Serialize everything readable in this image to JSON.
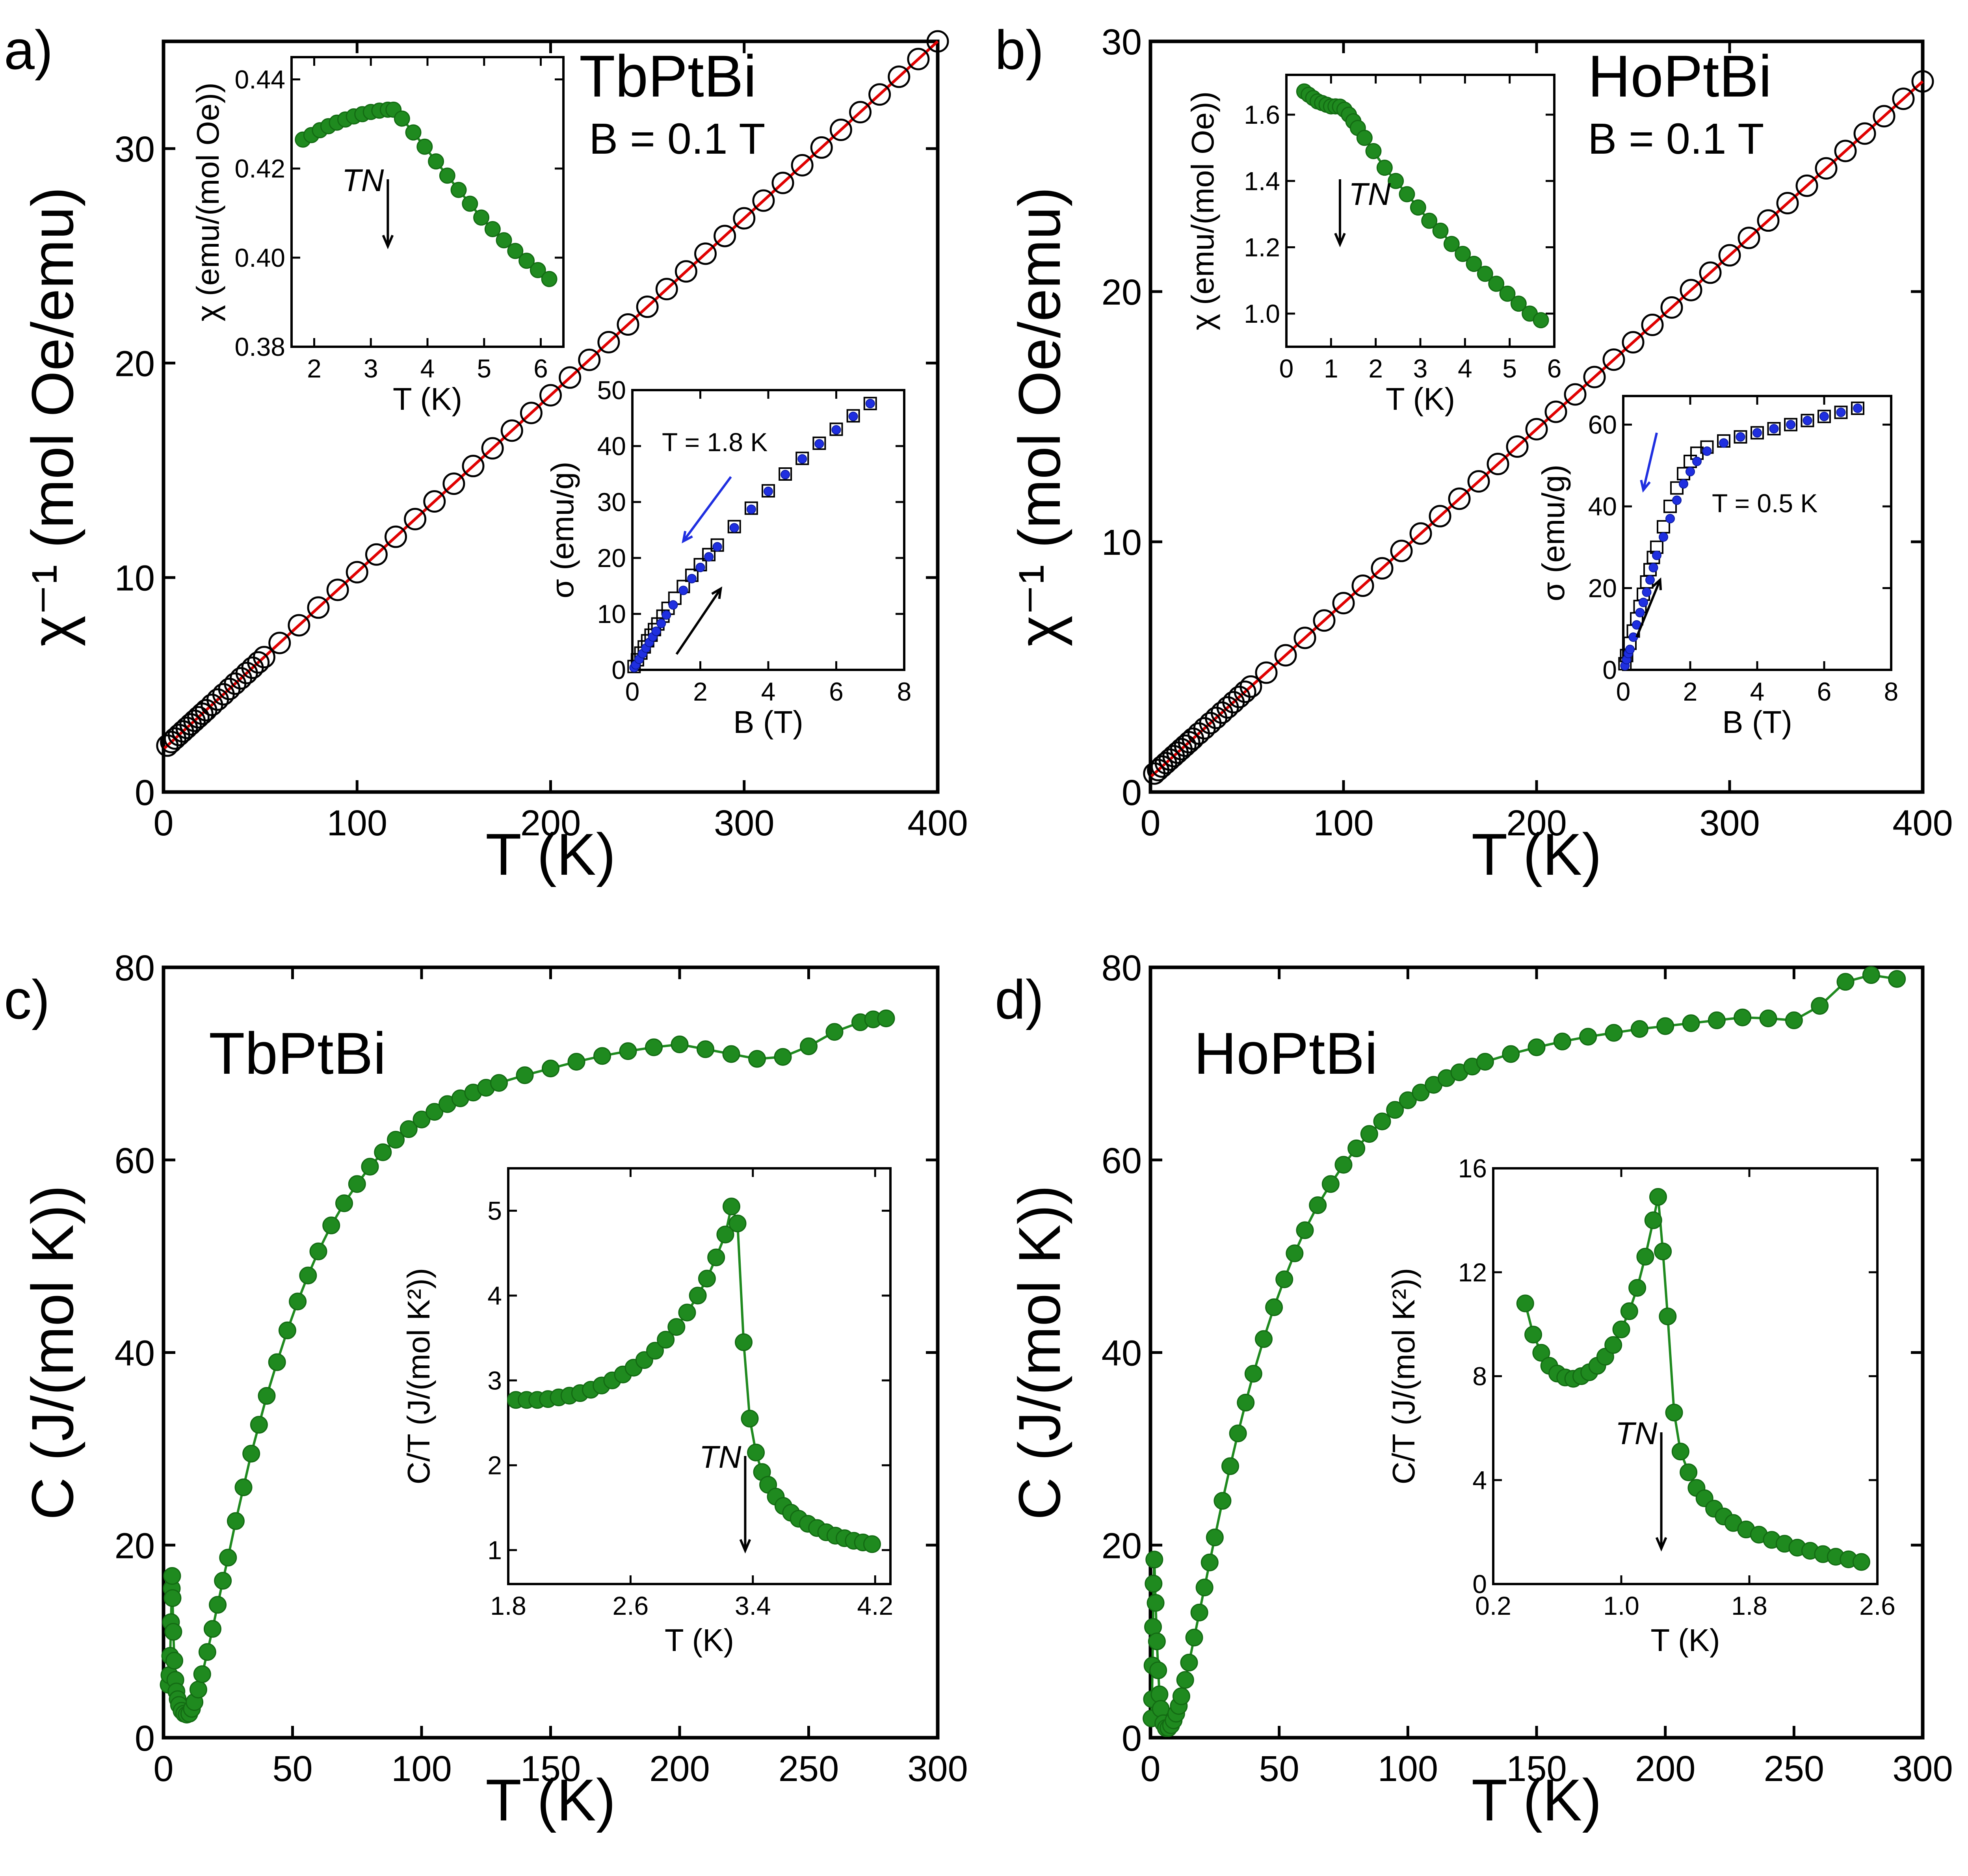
{
  "figure": {
    "panels": [
      "a)",
      "b)",
      "c)",
      "d)"
    ]
  },
  "chart_data": [
    {
      "id": "a_main",
      "type": "scatter",
      "panel": "a)",
      "compound": "TbPtBi",
      "field": "B = 0.1 T",
      "xlabel": "T (K)",
      "ylabel": "χ⁻¹ (mol Oe/emu)",
      "xlim": [
        0,
        400
      ],
      "ylim": [
        0,
        35
      ],
      "xticks": [
        0,
        100,
        200,
        300,
        400
      ],
      "yticks": [
        0,
        10,
        20,
        30
      ],
      "fit": {
        "slope": 0.0825,
        "intercept": 2.0
      },
      "x": [
        2,
        4,
        6,
        8,
        10,
        12,
        14,
        16,
        18,
        20,
        22,
        25,
        28,
        31,
        34,
        37,
        40,
        43,
        46,
        49,
        52,
        60,
        70,
        80,
        90,
        100,
        110,
        120,
        130,
        140,
        150,
        160,
        170,
        180,
        190,
        200,
        210,
        220,
        230,
        240,
        250,
        260,
        270,
        280,
        290,
        300,
        310,
        320,
        330,
        340,
        350,
        360,
        370,
        380,
        390,
        400
      ],
      "legend": "none"
    },
    {
      "id": "a_inset_chi",
      "type": "line",
      "panel": "a)",
      "xlabel": "T (K)",
      "ylabel": "χ (emu/(mol Oe))",
      "xlim": [
        1.6,
        6.4
      ],
      "ylim": [
        0.38,
        0.445
      ],
      "xticks": [
        2,
        3,
        4,
        5,
        6
      ],
      "yticks": [
        0.38,
        0.4,
        0.42,
        0.44
      ],
      "tn_label": "TN",
      "tn_x": 3.3,
      "x": [
        1.8,
        1.95,
        2.1,
        2.25,
        2.4,
        2.55,
        2.7,
        2.85,
        3.0,
        3.15,
        3.3,
        3.4,
        3.55,
        3.75,
        3.95,
        4.15,
        4.35,
        4.55,
        4.75,
        4.95,
        5.15,
        5.35,
        5.55,
        5.75,
        5.95,
        6.15
      ],
      "values": [
        0.4265,
        0.4275,
        0.4286,
        0.4295,
        0.4303,
        0.431,
        0.4317,
        0.4322,
        0.4327,
        0.433,
        0.4332,
        0.4332,
        0.4312,
        0.4281,
        0.4249,
        0.4216,
        0.4184,
        0.4152,
        0.4121,
        0.409,
        0.4064,
        0.4039,
        0.4015,
        0.3993,
        0.3972,
        0.3952
      ]
    },
    {
      "id": "a_inset_sigma",
      "type": "scatter",
      "panel": "a)",
      "xlabel": "B (T)",
      "ylabel": "σ (emu/g)",
      "xlim": [
        0,
        8
      ],
      "ylim": [
        0,
        50
      ],
      "xticks": [
        0,
        2,
        4,
        6,
        8
      ],
      "yticks": [
        0,
        10,
        20,
        30,
        40,
        50
      ],
      "annotation": "T = 1.8 K",
      "up_x": [
        0.05,
        0.15,
        0.25,
        0.35,
        0.45,
        0.55,
        0.65,
        0.75,
        0.9,
        1.05,
        1.25,
        1.5,
        1.75,
        2.0,
        2.25,
        2.5,
        3.0,
        3.5,
        4.0,
        4.5,
        5.0,
        5.5,
        6.0,
        6.5,
        7.0
      ],
      "up_y": [
        0.6,
        1.8,
        3.0,
        4.1,
        5.2,
        6.2,
        7.2,
        8.2,
        9.6,
        11.0,
        12.8,
        14.9,
        16.9,
        18.8,
        20.6,
        22.3,
        25.6,
        28.9,
        32.0,
        35.0,
        37.8,
        40.5,
        43.0,
        45.4,
        47.6
      ],
      "down_x": [
        0.05,
        0.1,
        0.2,
        0.3,
        0.4,
        0.5,
        0.6,
        0.7,
        0.85,
        1.0,
        1.2,
        1.5,
        1.75,
        2.0,
        2.25,
        2.5,
        3.0,
        3.5,
        4.0,
        4.5,
        5.0,
        5.5,
        6.0,
        6.5,
        7.0
      ],
      "down_y": [
        0.4,
        0.9,
        1.9,
        2.9,
        3.9,
        4.9,
        5.9,
        6.9,
        8.3,
        9.8,
        11.6,
        14.2,
        16.3,
        18.3,
        20.2,
        22.0,
        25.4,
        28.7,
        31.9,
        34.9,
        37.7,
        40.4,
        42.9,
        45.3,
        47.6
      ]
    },
    {
      "id": "b_main",
      "type": "scatter",
      "panel": "b)",
      "compound": "HoPtBi",
      "field": "B = 0.1 T",
      "xlabel": "T (K)",
      "ylabel": "χ⁻¹ (mol Oe/emu)",
      "xlim": [
        0,
        400
      ],
      "ylim": [
        0,
        30
      ],
      "xticks": [
        0,
        100,
        200,
        300,
        400
      ],
      "yticks": [
        0,
        10,
        20,
        30
      ],
      "fit": {
        "slope": 0.0695,
        "intercept": 0.6
      },
      "x": [
        2,
        4,
        6,
        8,
        10,
        12,
        14,
        16,
        18,
        20,
        22,
        25,
        28,
        31,
        34,
        37,
        40,
        43,
        46,
        49,
        52,
        60,
        70,
        80,
        90,
        100,
        110,
        120,
        130,
        140,
        150,
        160,
        170,
        180,
        190,
        200,
        210,
        220,
        230,
        240,
        250,
        260,
        270,
        280,
        290,
        300,
        310,
        320,
        330,
        340,
        350,
        360,
        370,
        380,
        390,
        400
      ],
      "legend": "none"
    },
    {
      "id": "b_inset_chi",
      "type": "line",
      "panel": "b)",
      "xlabel": "T (K)",
      "ylabel": "χ (emu/(mol Oe))",
      "xlim": [
        0,
        6
      ],
      "ylim": [
        0.9,
        1.72
      ],
      "xticks": [
        0,
        1,
        2,
        3,
        4,
        5,
        6
      ],
      "yticks": [
        1.0,
        1.2,
        1.4,
        1.6
      ],
      "tn_label": "TN",
      "tn_x": 1.2,
      "x": [
        0.4,
        0.5,
        0.6,
        0.7,
        0.8,
        0.9,
        1.0,
        1.1,
        1.2,
        1.3,
        1.4,
        1.5,
        1.6,
        1.75,
        1.95,
        2.2,
        2.45,
        2.7,
        2.95,
        3.2,
        3.45,
        3.7,
        3.95,
        4.2,
        4.45,
        4.7,
        4.95,
        5.2,
        5.45,
        5.7
      ],
      "values": [
        1.67,
        1.66,
        1.65,
        1.64,
        1.635,
        1.63,
        1.625,
        1.625,
        1.624,
        1.615,
        1.6,
        1.58,
        1.56,
        1.53,
        1.49,
        1.44,
        1.4,
        1.36,
        1.32,
        1.28,
        1.25,
        1.21,
        1.18,
        1.15,
        1.12,
        1.09,
        1.06,
        1.03,
        1.0,
        0.98
      ]
    },
    {
      "id": "b_inset_sigma",
      "type": "scatter",
      "panel": "b)",
      "xlabel": "B (T)",
      "ylabel": "σ (emu/g)",
      "xlim": [
        0,
        8
      ],
      "ylim": [
        0,
        67
      ],
      "xticks": [
        0,
        2,
        4,
        6,
        8
      ],
      "yticks": [
        0,
        20,
        40,
        60
      ],
      "annotation": "T = 0.5 K",
      "up_x": [
        0.05,
        0.1,
        0.2,
        0.3,
        0.4,
        0.5,
        0.6,
        0.7,
        0.8,
        0.9,
        1.0,
        1.2,
        1.4,
        1.6,
        1.8,
        2.0,
        2.2,
        2.5,
        3.0,
        3.5,
        4.0,
        4.5,
        5.0,
        5.5,
        6.0,
        6.5,
        7.0
      ],
      "up_y": [
        1.5,
        3.5,
        6.5,
        9.5,
        12.5,
        15.5,
        18.5,
        21.5,
        24.5,
        27.5,
        30.0,
        35.0,
        40.0,
        44.5,
        48.0,
        51.0,
        53.0,
        54.5,
        56.0,
        57.0,
        58.0,
        59.0,
        60.0,
        61.0,
        62.0,
        63.0,
        64.0
      ],
      "down_x": [
        0.05,
        0.1,
        0.15,
        0.2,
        0.3,
        0.4,
        0.5,
        0.6,
        0.7,
        0.8,
        0.9,
        1.0,
        1.2,
        1.4,
        1.6,
        1.8,
        2.0,
        2.2,
        2.5,
        3.0,
        3.5,
        4.0,
        4.5,
        5.0,
        5.5,
        6.0,
        6.5,
        7.0
      ],
      "down_y": [
        1.0,
        2.5,
        4.0,
        5.0,
        8.0,
        11.0,
        14.0,
        16.5,
        19.0,
        22.0,
        25.0,
        28.0,
        32.5,
        37.0,
        41.5,
        45.5,
        48.5,
        51.0,
        53.5,
        55.5,
        57.0,
        58.0,
        59.0,
        60.0,
        61.0,
        62.0,
        63.0,
        64.0
      ]
    },
    {
      "id": "c_main",
      "type": "line",
      "panel": "c)",
      "compound": "TbPtBi",
      "xlabel": "T (K)",
      "ylabel": "C (J/(mol K))",
      "xlim": [
        0,
        300
      ],
      "ylim": [
        0,
        80
      ],
      "xticks": [
        0,
        50,
        100,
        150,
        200,
        250,
        300
      ],
      "yticks": [
        0,
        20,
        40,
        60,
        80
      ],
      "x": [
        2,
        2.3,
        2.6,
        2.9,
        3.2,
        3.35,
        3.5,
        3.8,
        4.2,
        4.6,
        5,
        5.5,
        6,
        7,
        8,
        9,
        10,
        11,
        12,
        13.5,
        15,
        17,
        19,
        21,
        23,
        25,
        28,
        31,
        34,
        37,
        40,
        44,
        48,
        52,
        56,
        60,
        65,
        70,
        75,
        80,
        85,
        90,
        95,
        100,
        105,
        110,
        115,
        120,
        125,
        130,
        140,
        150,
        160,
        170,
        180,
        190,
        200,
        210,
        220,
        230,
        240,
        250,
        260,
        270,
        275,
        280
      ],
      "values": [
        5.5,
        6.5,
        8.5,
        12.0,
        15.5,
        16.8,
        14.5,
        11.0,
        8.0,
        6.0,
        4.8,
        4.0,
        3.4,
        2.8,
        2.5,
        2.4,
        2.5,
        3.0,
        3.7,
        5.0,
        6.6,
        8.9,
        11.3,
        13.8,
        16.3,
        18.7,
        22.5,
        26.0,
        29.5,
        32.5,
        35.5,
        39.0,
        42.3,
        45.3,
        48.0,
        50.5,
        53.2,
        55.5,
        57.5,
        59.3,
        60.8,
        62.1,
        63.2,
        64.2,
        65.0,
        65.8,
        66.4,
        67.0,
        67.5,
        68.0,
        68.8,
        69.5,
        70.2,
        70.8,
        71.3,
        71.7,
        72.0,
        71.5,
        71.0,
        70.5,
        70.7,
        71.8,
        73.3,
        74.3,
        74.6,
        74.7
      ],
      "legend": "none"
    },
    {
      "id": "c_inset",
      "type": "line",
      "panel": "c)",
      "xlabel": "T (K)",
      "ylabel": "C/T (J/(mol K²))",
      "xlim": [
        1.8,
        4.3
      ],
      "ylim": [
        0.6,
        5.5
      ],
      "xticks": [
        1.8,
        2.6,
        3.4,
        4.2
      ],
      "yticks": [
        1,
        2,
        3,
        4,
        5
      ],
      "tn_label": "TN",
      "tn_x": 3.35,
      "x": [
        1.85,
        1.92,
        1.99,
        2.06,
        2.13,
        2.2,
        2.27,
        2.34,
        2.41,
        2.48,
        2.55,
        2.62,
        2.69,
        2.76,
        2.83,
        2.9,
        2.97,
        3.04,
        3.1,
        3.16,
        3.22,
        3.26,
        3.3,
        3.34,
        3.38,
        3.42,
        3.46,
        3.5,
        3.55,
        3.6,
        3.65,
        3.7,
        3.76,
        3.82,
        3.88,
        3.94,
        4.0,
        4.06,
        4.12,
        4.18
      ],
      "values": [
        2.77,
        2.77,
        2.77,
        2.78,
        2.8,
        2.82,
        2.85,
        2.89,
        2.94,
        3.0,
        3.07,
        3.15,
        3.24,
        3.35,
        3.48,
        3.63,
        3.8,
        4.0,
        4.2,
        4.45,
        4.72,
        5.05,
        4.85,
        3.45,
        2.55,
        2.15,
        1.92,
        1.77,
        1.63,
        1.52,
        1.44,
        1.37,
        1.31,
        1.26,
        1.21,
        1.17,
        1.14,
        1.11,
        1.09,
        1.07
      ]
    },
    {
      "id": "d_main",
      "type": "line",
      "panel": "d)",
      "compound": "HoPtBi",
      "xlabel": "T (K)",
      "ylabel": "C (J/(mol K))",
      "xlim": [
        0,
        300
      ],
      "ylim": [
        0,
        80
      ],
      "xticks": [
        0,
        50,
        100,
        150,
        200,
        250,
        300
      ],
      "yticks": [
        0,
        20,
        40,
        60,
        80
      ],
      "x": [
        0.4,
        0.6,
        0.8,
        1.0,
        1.2,
        1.5,
        2,
        2.5,
        3,
        3.5,
        4,
        5,
        6,
        7,
        8,
        9,
        10,
        11,
        12,
        13.5,
        15,
        17,
        19,
        21,
        23,
        25,
        28,
        31,
        34,
        37,
        40,
        44,
        48,
        52,
        56,
        60,
        65,
        70,
        75,
        80,
        85,
        90,
        95,
        100,
        105,
        110,
        115,
        120,
        125,
        130,
        140,
        150,
        160,
        170,
        180,
        190,
        200,
        210,
        220,
        230,
        240,
        250,
        260,
        270,
        280,
        290
      ],
      "values": [
        2.0,
        4.0,
        7.5,
        11.5,
        16.0,
        18.5,
        14.0,
        10.0,
        7.0,
        4.5,
        3.0,
        1.5,
        1.0,
        1.0,
        1.3,
        1.8,
        2.5,
        3.3,
        4.3,
        6.0,
        7.8,
        10.4,
        13.0,
        15.6,
        18.2,
        20.8,
        24.6,
        28.2,
        31.6,
        34.8,
        37.8,
        41.4,
        44.7,
        47.6,
        50.3,
        52.7,
        55.3,
        57.5,
        59.5,
        61.2,
        62.7,
        64.0,
        65.2,
        66.2,
        67.0,
        67.8,
        68.5,
        69.1,
        69.7,
        70.2,
        71.0,
        71.7,
        72.3,
        72.8,
        73.2,
        73.6,
        73.9,
        74.2,
        74.5,
        74.8,
        74.7,
        74.5,
        76.0,
        78.5,
        79.2,
        78.8
      ],
      "legend": "none"
    },
    {
      "id": "d_inset",
      "type": "line",
      "panel": "d)",
      "xlabel": "T (K)",
      "ylabel": "C/T (J/(mol K²))",
      "xlim": [
        0.2,
        2.6
      ],
      "ylim": [
        0,
        16
      ],
      "xticks": [
        0.2,
        1.0,
        1.8,
        2.6
      ],
      "yticks": [
        0,
        4,
        8,
        12,
        16
      ],
      "tn_label": "TN",
      "tn_x": 1.25,
      "x": [
        0.4,
        0.45,
        0.5,
        0.55,
        0.6,
        0.65,
        0.7,
        0.75,
        0.8,
        0.85,
        0.9,
        0.95,
        1.0,
        1.05,
        1.1,
        1.15,
        1.2,
        1.23,
        1.26,
        1.29,
        1.33,
        1.37,
        1.42,
        1.47,
        1.52,
        1.58,
        1.64,
        1.7,
        1.78,
        1.86,
        1.94,
        2.02,
        2.1,
        2.18,
        2.26,
        2.34,
        2.42,
        2.5
      ],
      "values": [
        10.8,
        9.6,
        8.9,
        8.4,
        8.1,
        7.95,
        7.9,
        8.0,
        8.15,
        8.4,
        8.75,
        9.2,
        9.8,
        10.5,
        11.4,
        12.6,
        14.0,
        14.9,
        12.8,
        10.3,
        6.6,
        5.1,
        4.3,
        3.7,
        3.3,
        2.9,
        2.6,
        2.35,
        2.1,
        1.9,
        1.7,
        1.55,
        1.4,
        1.28,
        1.15,
        1.05,
        0.95,
        0.85
      ]
    }
  ]
}
